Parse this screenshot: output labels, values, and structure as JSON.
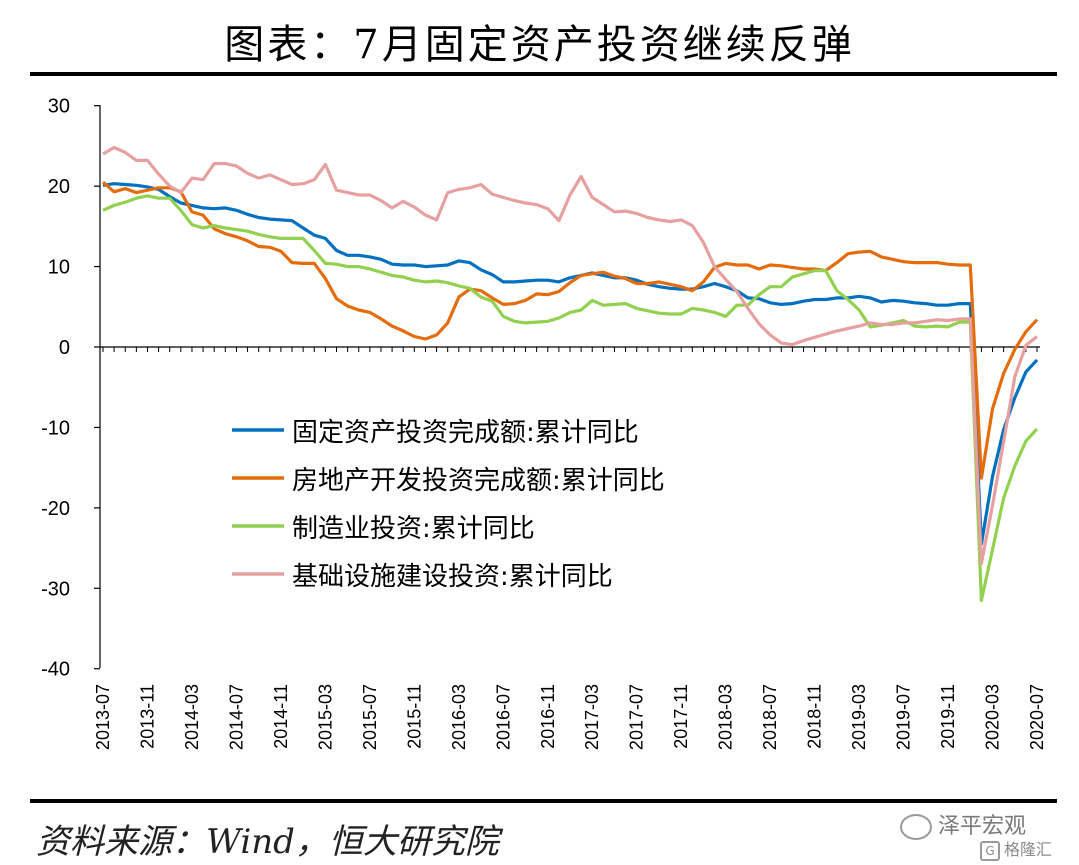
{
  "title": "图表：7月固定资产投资继续反弹",
  "source": "资料来源：Wind，恒大研究院",
  "watermark": "泽平宏观",
  "watermark2": "格隆汇",
  "chart_data": {
    "type": "line",
    "ylim": [
      -40,
      30
    ],
    "yticks": [
      "30",
      "20",
      "10",
      "0",
      "-10",
      "-20",
      "-30",
      "-40"
    ],
    "x_tick_labels": [
      "2013-07",
      "2013-11",
      "2014-03",
      "2014-07",
      "2014-11",
      "2015-03",
      "2015-07",
      "2015-11",
      "2016-03",
      "2016-07",
      "2016-11",
      "2017-03",
      "2017-07",
      "2017-11",
      "2018-03",
      "2018-07",
      "2018-11",
      "2019-03",
      "2019-07",
      "2019-11",
      "2020-03",
      "2020-07"
    ],
    "x_months": [
      "2013-07",
      "2013-08",
      "2013-09",
      "2013-10",
      "2013-11",
      "2013-12",
      "2014-01",
      "2014-02",
      "2014-03",
      "2014-04",
      "2014-05",
      "2014-06",
      "2014-07",
      "2014-08",
      "2014-09",
      "2014-10",
      "2014-11",
      "2014-12",
      "2015-01",
      "2015-02",
      "2015-03",
      "2015-04",
      "2015-05",
      "2015-06",
      "2015-07",
      "2015-08",
      "2015-09",
      "2015-10",
      "2015-11",
      "2015-12",
      "2016-01",
      "2016-02",
      "2016-03",
      "2016-04",
      "2016-05",
      "2016-06",
      "2016-07",
      "2016-08",
      "2016-09",
      "2016-10",
      "2016-11",
      "2016-12",
      "2017-01",
      "2017-02",
      "2017-03",
      "2017-04",
      "2017-05",
      "2017-06",
      "2017-07",
      "2017-08",
      "2017-09",
      "2017-10",
      "2017-11",
      "2017-12",
      "2018-01",
      "2018-02",
      "2018-03",
      "2018-04",
      "2018-05",
      "2018-06",
      "2018-07",
      "2018-08",
      "2018-09",
      "2018-10",
      "2018-11",
      "2018-12",
      "2019-01",
      "2019-02",
      "2019-03",
      "2019-04",
      "2019-05",
      "2019-06",
      "2019-07",
      "2019-08",
      "2019-09",
      "2019-10",
      "2019-11",
      "2019-12",
      "2020-01",
      "2020-02",
      "2020-03",
      "2020-04",
      "2020-05",
      "2020-06",
      "2020-07"
    ],
    "series": [
      {
        "name": "固定资产投资完成额:累计同比",
        "color": "#0070C0",
        "values": [
          20.1,
          20.3,
          20.2,
          20.1,
          19.9,
          19.6,
          18.7,
          17.9,
          17.6,
          17.3,
          17.2,
          17.3,
          17.0,
          16.5,
          16.1,
          15.9,
          15.8,
          15.7,
          14.8,
          13.9,
          13.5,
          12.0,
          11.4,
          11.4,
          11.2,
          10.9,
          10.3,
          10.2,
          10.2,
          10.0,
          10.1,
          10.2,
          10.7,
          10.5,
          9.6,
          9.0,
          8.1,
          8.1,
          8.2,
          8.3,
          8.3,
          8.1,
          8.6,
          8.9,
          9.2,
          8.9,
          8.6,
          8.6,
          8.3,
          7.8,
          7.5,
          7.3,
          7.2,
          7.2,
          7.5,
          7.9,
          7.5,
          7.0,
          6.1,
          6.0,
          5.5,
          5.3,
          5.4,
          5.7,
          5.9,
          5.9,
          6.1,
          6.1,
          6.3,
          6.1,
          5.6,
          5.8,
          5.7,
          5.5,
          5.4,
          5.2,
          5.2,
          5.4,
          5.4,
          -24.5,
          -16.1,
          -10.3,
          -6.3,
          -3.1,
          -1.6
        ]
      },
      {
        "name": "房地产开发投资完成额:累计同比",
        "color": "#E46C0A",
        "values": [
          20.5,
          19.3,
          19.7,
          19.2,
          19.5,
          19.8,
          19.8,
          19.3,
          16.8,
          16.4,
          14.7,
          14.1,
          13.7,
          13.2,
          12.5,
          12.4,
          11.9,
          10.5,
          10.4,
          10.4,
          8.5,
          6.0,
          5.1,
          4.6,
          4.3,
          3.5,
          2.6,
          2.0,
          1.3,
          1.0,
          1.5,
          3.0,
          6.2,
          7.2,
          7.0,
          6.1,
          5.3,
          5.4,
          5.8,
          6.6,
          6.5,
          6.9,
          8.0,
          8.9,
          9.1,
          9.3,
          8.8,
          8.5,
          7.9,
          7.9,
          8.1,
          7.8,
          7.5,
          7.0,
          8.1,
          9.9,
          10.4,
          10.2,
          10.2,
          9.7,
          10.2,
          10.1,
          9.9,
          9.7,
          9.7,
          9.5,
          10.5,
          11.6,
          11.8,
          11.9,
          11.2,
          10.9,
          10.6,
          10.5,
          10.5,
          10.5,
          10.3,
          10.2,
          10.2,
          -16.3,
          -7.7,
          -3.3,
          -0.3,
          1.9,
          3.4
        ]
      },
      {
        "name": "制造业投资:累计同比",
        "color": "#92D050",
        "values": [
          17.0,
          17.6,
          18.0,
          18.5,
          18.8,
          18.5,
          18.5,
          17.0,
          15.2,
          14.8,
          15.1,
          14.8,
          14.6,
          14.4,
          14.0,
          13.7,
          13.5,
          13.5,
          13.5,
          12.0,
          10.4,
          10.3,
          10.0,
          10.0,
          9.7,
          9.3,
          8.9,
          8.7,
          8.3,
          8.1,
          8.2,
          8.0,
          7.6,
          7.3,
          6.2,
          5.7,
          3.8,
          3.2,
          3.0,
          3.1,
          3.2,
          3.6,
          4.3,
          4.6,
          5.8,
          5.2,
          5.3,
          5.4,
          4.8,
          4.5,
          4.2,
          4.1,
          4.1,
          4.8,
          4.6,
          4.3,
          3.8,
          5.2,
          5.2,
          6.5,
          7.5,
          7.5,
          8.7,
          9.1,
          9.5,
          9.5,
          7.0,
          5.9,
          4.6,
          2.5,
          2.7,
          3.0,
          3.3,
          2.6,
          2.5,
          2.6,
          2.5,
          3.1,
          3.1,
          -31.5,
          -25.2,
          -18.8,
          -14.8,
          -11.7,
          -10.2
        ]
      },
      {
        "name": "基础设施建设投资:累计同比",
        "color": "#E6A0A0",
        "values": [
          24.0,
          24.8,
          24.2,
          23.2,
          23.2,
          21.5,
          20.0,
          19.2,
          21.0,
          20.8,
          22.8,
          22.8,
          22.5,
          21.6,
          21.0,
          21.4,
          20.8,
          20.2,
          20.3,
          20.8,
          22.7,
          19.5,
          19.2,
          18.9,
          18.9,
          18.2,
          17.3,
          18.1,
          17.4,
          16.4,
          15.8,
          19.2,
          19.6,
          19.8,
          20.2,
          19.0,
          18.6,
          18.2,
          17.9,
          17.7,
          17.2,
          15.7,
          18.9,
          21.2,
          18.6,
          17.7,
          16.8,
          16.9,
          16.6,
          16.1,
          15.8,
          15.6,
          15.8,
          15.1,
          13.0,
          10.0,
          8.4,
          6.9,
          4.8,
          2.9,
          1.5,
          0.5,
          0.3,
          0.8,
          1.2,
          1.6,
          2.0,
          2.3,
          2.6,
          3.0,
          2.8,
          2.8,
          3.0,
          3.0,
          3.2,
          3.4,
          3.3,
          3.5,
          3.5,
          -26.9,
          -19.7,
          -11.8,
          -3.7,
          0.2,
          1.3
        ]
      }
    ]
  }
}
